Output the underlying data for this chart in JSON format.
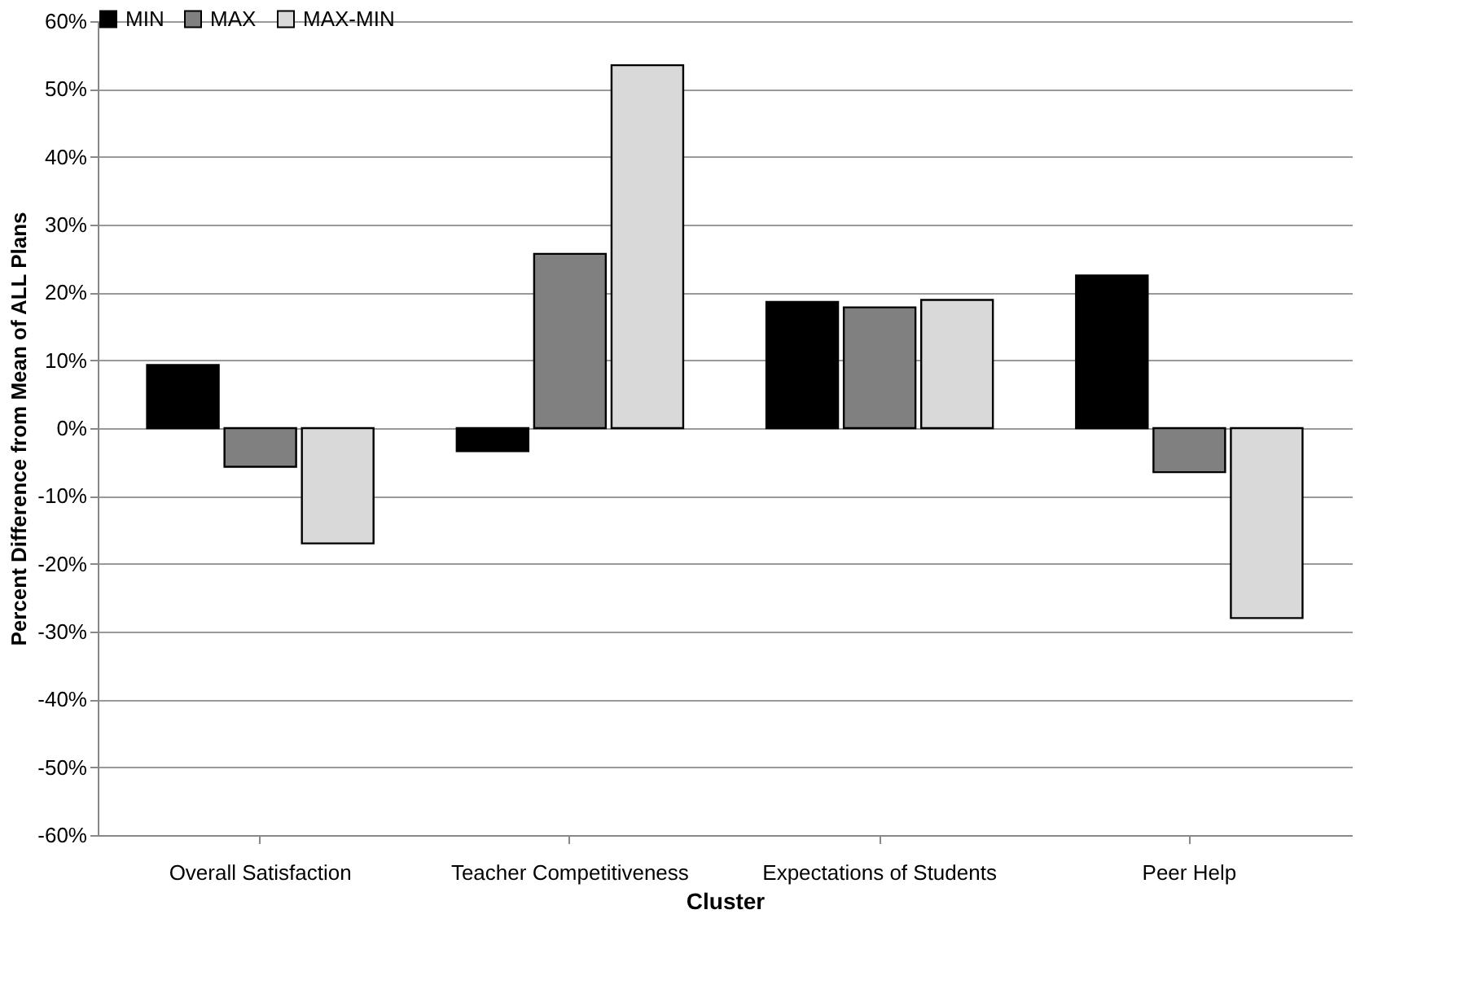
{
  "chart_data": {
    "type": "bar",
    "xlabel": "Cluster",
    "ylabel": "Percent Difference from Mean of ALL Plans",
    "categories": [
      "Overall Satisfaction",
      "Teacher Competitiveness",
      "Expectations of Students",
      "Peer Help"
    ],
    "series": [
      {
        "name": "MIN",
        "color": "#000000",
        "values": [
          9.3,
          -3.4,
          18.6,
          22.5
        ]
      },
      {
        "name": "MAX",
        "color": "#808080",
        "values": [
          -5.7,
          25.7,
          17.8,
          -6.5
        ]
      },
      {
        "name": "MAX-MIN",
        "color": "#d9d9d9",
        "values": [
          -17,
          53.5,
          18.9,
          -28
        ]
      }
    ],
    "ylim": [
      -60,
      60
    ],
    "yticks": [
      {
        "value": -60,
        "label": "-60%"
      },
      {
        "value": -50,
        "label": "-50%"
      },
      {
        "value": -40,
        "label": "-40%"
      },
      {
        "value": -30,
        "label": "-30%"
      },
      {
        "value": -20,
        "label": "-20%"
      },
      {
        "value": -10,
        "label": "-10%"
      },
      {
        "value": 0,
        "label": "0%"
      },
      {
        "value": 10,
        "label": "10%"
      },
      {
        "value": 20,
        "label": "20%"
      },
      {
        "value": 30,
        "label": "30%"
      },
      {
        "value": 40,
        "label": "40%"
      },
      {
        "value": 50,
        "label": "50%"
      },
      {
        "value": 60,
        "label": "60%"
      }
    ],
    "grid": "y",
    "legend": "top"
  }
}
